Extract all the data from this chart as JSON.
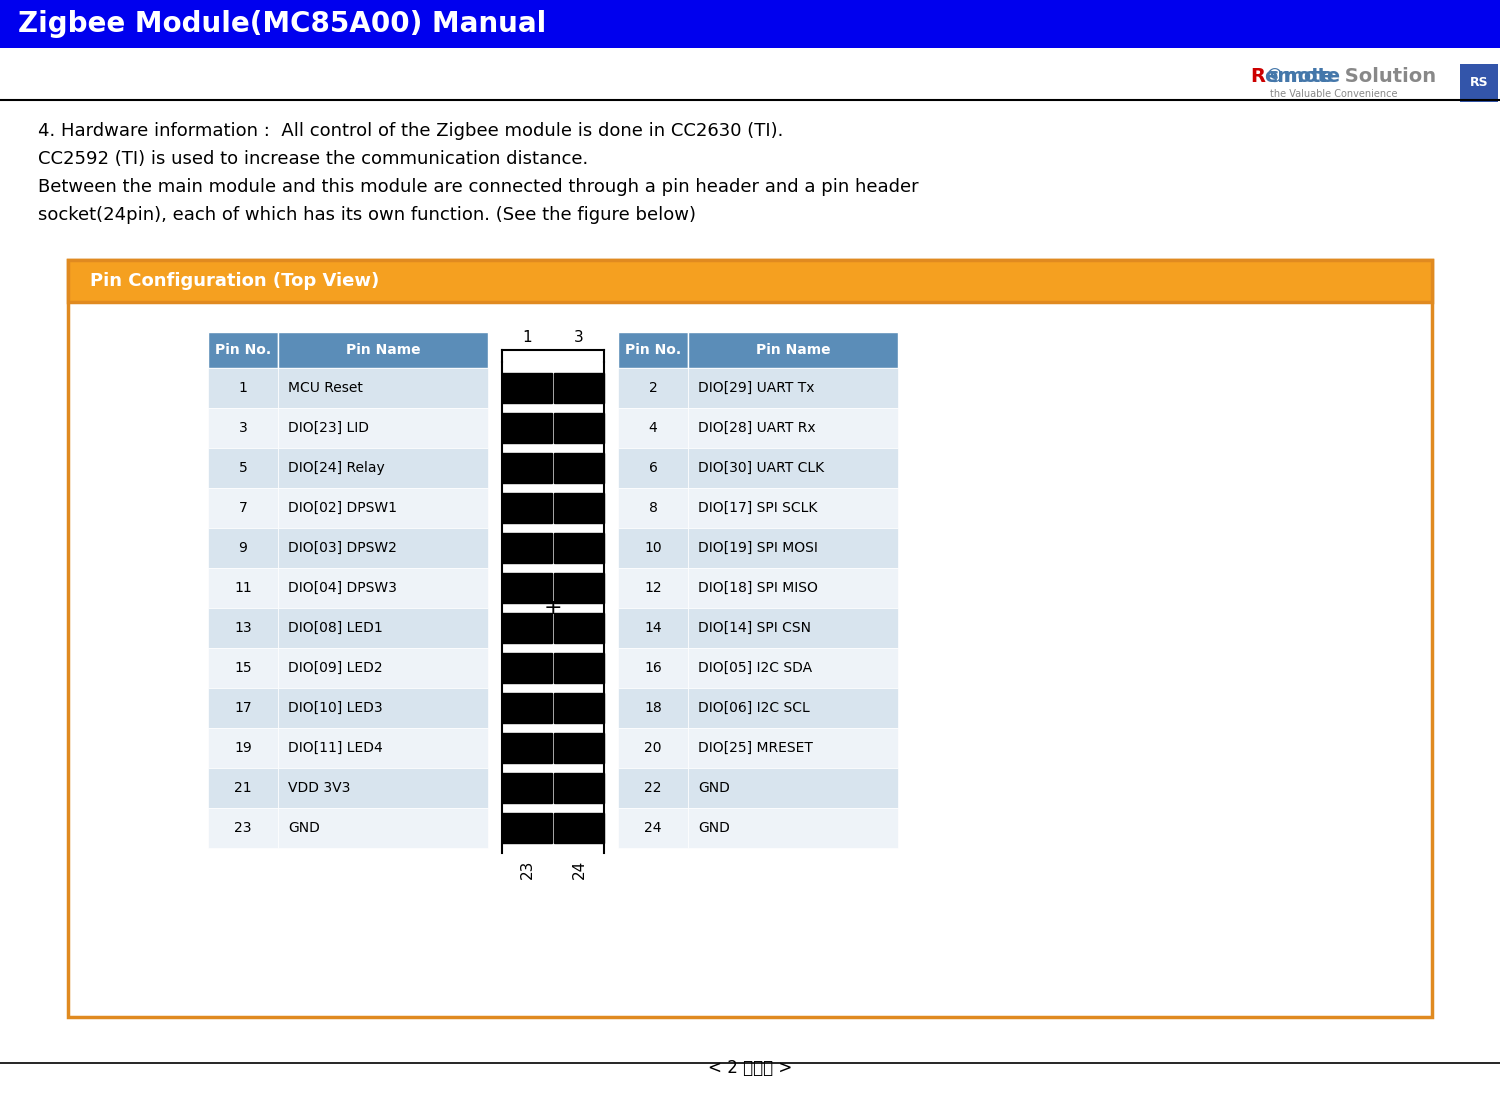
{
  "title": "Zigbee Module(MC85A00) Manual",
  "title_bg": "#0000EE",
  "title_color": "#FFFFFF",
  "header_line1": "4. Hardware information :  All control of the Zigbee module is done in CC2630 (TI).",
  "header_line2": "CC2592 (TI) is used to increase the communication distance.",
  "header_line3": "Between the main module and this module are connected through a pin header and a pin header",
  "header_line4": "socket(24pin), each of which has its own function. (See the figure below)",
  "section_title": "Pin Configuration (Top View)",
  "section_bg": "#F5A020",
  "section_title_color": "#FFFFFF",
  "table_header_bg": "#5B8DB8",
  "table_header_color": "#FFFFFF",
  "table_row_odd_bg": "#D8E4EE",
  "table_row_even_bg": "#EEF3F8",
  "outer_border_color": "#E08A20",
  "page_footer": "< 2 페이지 >",
  "left_pins": [
    {
      "no": "1",
      "name": "MCU Reset"
    },
    {
      "no": "3",
      "name": "DIO[23] LID"
    },
    {
      "no": "5",
      "name": "DIO[24] Relay"
    },
    {
      "no": "7",
      "name": "DIO[02] DPSW1"
    },
    {
      "no": "9",
      "name": "DIO[03] DPSW2"
    },
    {
      "no": "11",
      "name": "DIO[04] DPSW3"
    },
    {
      "no": "13",
      "name": "DIO[08] LED1"
    },
    {
      "no": "15",
      "name": "DIO[09] LED2"
    },
    {
      "no": "17",
      "name": "DIO[10] LED3"
    },
    {
      "no": "19",
      "name": "DIO[11] LED4"
    },
    {
      "no": "21",
      "name": "VDD 3V3"
    },
    {
      "no": "23",
      "name": "GND"
    }
  ],
  "right_pins": [
    {
      "no": "2",
      "name": "DIO[29] UART Tx"
    },
    {
      "no": "4",
      "name": "DIO[28] UART Rx"
    },
    {
      "no": "6",
      "name": "DIO[30] UART CLK"
    },
    {
      "no": "8",
      "name": "DIO[17] SPI SCLK"
    },
    {
      "no": "10",
      "name": "DIO[19] SPI MOSI"
    },
    {
      "no": "12",
      "name": "DIO[18] SPI MISO"
    },
    {
      "no": "14",
      "name": "DIO[14] SPI CSN"
    },
    {
      "no": "16",
      "name": "DIO[05] I2C SDA"
    },
    {
      "no": "18",
      "name": "DIO[06] I2C SCL"
    },
    {
      "no": "20",
      "name": "DIO[25] MRESET"
    },
    {
      "no": "22",
      "name": "GND"
    },
    {
      "no": "24",
      "name": "GND"
    }
  ]
}
